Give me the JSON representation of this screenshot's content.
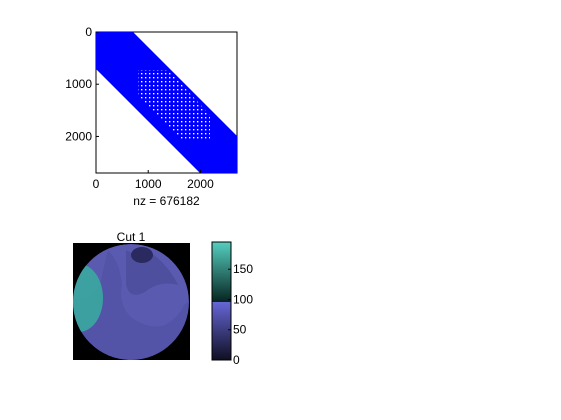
{
  "chart_data": [
    {
      "type": "heatmap",
      "subtype": "sparsity-pattern",
      "title": "",
      "xlabel": "nz = 676182",
      "ylabel": "",
      "xlim": [
        0,
        2700
      ],
      "ylim": [
        2700,
        0
      ],
      "x_ticks": [
        0,
        1000,
        2000
      ],
      "y_ticks": [
        0,
        1000,
        2000
      ],
      "band_halfwidth": 700,
      "sparse_region": {
        "row_start": 800,
        "row_end": 2050
      },
      "marker_color": "#0000ff",
      "grid": false
    },
    {
      "type": "heatmap",
      "subtype": "image-slice",
      "title": "Cut 1",
      "colorbar": {
        "ticks": [
          0,
          50,
          100,
          150
        ],
        "range": [
          0,
          195
        ],
        "lower_colormap": {
          "range": [
            0,
            100
          ],
          "from": "#0f0f22",
          "to": "#6666d6"
        },
        "upper_colormap": {
          "range": [
            100,
            195
          ],
          "from": "#062420",
          "to": "#55cfc0"
        }
      },
      "background_color": "#000000",
      "disk_color": "#5a5ab0",
      "highlight_color": "#3aa9a0"
    }
  ]
}
